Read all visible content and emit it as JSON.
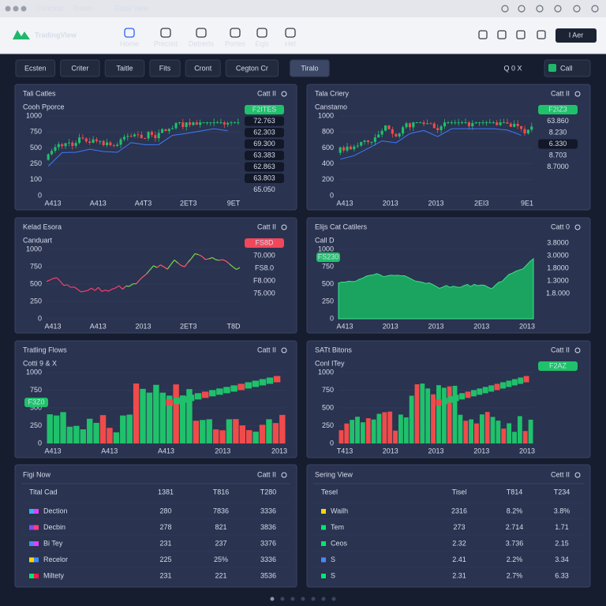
{
  "browser": {
    "tabs": [
      "Concicts",
      "Tralion",
      "Eopy View"
    ]
  },
  "nav": {
    "logo": "TradingView",
    "items": [
      "Home",
      "Precisd",
      "Detrerts",
      "Portes",
      "Eqis",
      "Het"
    ],
    "active": 0,
    "account": "I Aer"
  },
  "toolbar": {
    "buttons": [
      "Ecsten",
      "Criter",
      "Taitle",
      "Fits",
      "Cront",
      "Cegton Cr",
      "Tiralo"
    ],
    "active": 6,
    "search": "Q 0 X",
    "call": "Call"
  },
  "panels": [
    {
      "title": "Tali Catles",
      "action": "Catt II",
      "subtitle": "Cooh Pporce",
      "kind": "candles",
      "yticks": [
        "1000",
        "750",
        "500",
        "250",
        "100",
        "0"
      ],
      "xticks": [
        "A413",
        "A413",
        "A4T3",
        "2ET3",
        "9ET"
      ],
      "tags": [
        {
          "label": "F2ITES",
          "style": "green"
        },
        {
          "label": "72.763",
          "style": "dark"
        },
        {
          "label": "62.303",
          "style": "dark"
        },
        {
          "label": "69.300",
          "style": "dark"
        },
        {
          "label": "63.383",
          "style": "dark"
        },
        {
          "label": "62.863",
          "style": "dark"
        },
        {
          "label": "63.803",
          "style": "dark"
        },
        {
          "label": "65.050",
          "style": "red-text"
        }
      ]
    },
    {
      "title": "Tala Criery",
      "action": "Catt II",
      "subtitle": "Canstamo",
      "kind": "candles",
      "yticks": [
        "1000",
        "800",
        "600",
        "400",
        "200",
        "0"
      ],
      "xticks": [
        "A413",
        "2013",
        "2013",
        "2EI3",
        "9E1"
      ],
      "tags": [
        {
          "label": "F2IZ3",
          "style": "green"
        },
        {
          "label": "63.860",
          "style": "plain"
        },
        {
          "label": "8.230",
          "style": "plain"
        },
        {
          "label": "6.330",
          "style": "dark"
        },
        {
          "label": "8.703",
          "style": "plain"
        },
        {
          "label": "8.7000",
          "style": "plain"
        }
      ]
    },
    {
      "title": "Kelad Esora",
      "action": "Catt II",
      "subtitle": "Canduart",
      "kind": "line",
      "yticks": [
        "1000",
        "750",
        "500",
        "250",
        "0"
      ],
      "xticks": [
        "A413",
        "A413",
        "2013",
        "2ET3",
        "T8D"
      ],
      "tags": [
        {
          "label": "FS8D",
          "style": "red"
        },
        {
          "label": "70.000",
          "style": "plain"
        },
        {
          "label": "FS8.0",
          "style": "red-text"
        },
        {
          "label": "F8.000",
          "style": "green-text"
        },
        {
          "label": "75.000",
          "style": "red-text"
        }
      ]
    },
    {
      "title": "Elijs Cat Catilers",
      "action": "Catt 0",
      "subtitle": "Call D",
      "kind": "area",
      "yticks": [
        "1000",
        "750",
        "500",
        "250",
        "0"
      ],
      "xticks": [
        "A413",
        "2013",
        "2013",
        "2013",
        "2013"
      ],
      "tags": [
        {
          "label": "3.8000",
          "style": "plain"
        },
        {
          "label": "3.0000",
          "style": "plain"
        },
        {
          "label": "1.8000",
          "style": "plain"
        },
        {
          "label": "1.3000",
          "style": "plain"
        },
        {
          "label": "1.8.000",
          "style": "plain"
        }
      ],
      "badge": {
        "label": "FS230",
        "style": "green"
      }
    },
    {
      "title": "Tratling Flows",
      "action": "Catt II",
      "subtitle": "Cotti 9 & X",
      "kind": "bars",
      "yticks": [
        "1000",
        "750",
        "500",
        "250",
        "0"
      ],
      "xticks": [
        "A413",
        "A413",
        "A413",
        "2013",
        "2013"
      ],
      "tags": [],
      "badge": {
        "label": "F3Z0",
        "style": "green"
      }
    },
    {
      "title": "SATt Bitons",
      "action": "Catt II",
      "subtitle": "Conl ITey",
      "kind": "bars",
      "yticks": [
        "1000",
        "750",
        "500",
        "250",
        "0"
      ],
      "xticks": [
        "T413",
        "2013",
        "2013",
        "2013",
        "2013"
      ],
      "tags": [
        {
          "label": "F2AZ",
          "style": "green"
        }
      ]
    }
  ],
  "tables": [
    {
      "title": "Figi Now",
      "action": "Catt II",
      "header": [
        "Tital Cad",
        "1381",
        "T816",
        "T280"
      ],
      "rows": [
        [
          "Dection",
          "280",
          "7836",
          "3336"
        ],
        [
          "Decbin",
          "278",
          "821",
          "3836"
        ],
        [
          "Bi Tey",
          "231",
          "237",
          "3376"
        ],
        [
          "Recelor",
          "225",
          "25%",
          "3336"
        ],
        [
          "Miltety",
          "231",
          "221",
          "3536"
        ]
      ],
      "row_icons": [
        [
          "#29b6f6",
          "#e040fb"
        ],
        [
          "#7c4dff",
          "#ff4081"
        ],
        [
          "#448aff",
          "#e040fb"
        ],
        [
          "#ffd600",
          "#448aff"
        ],
        [
          "#00e676",
          "#ff1744"
        ]
      ]
    },
    {
      "title": "Sering View",
      "action": "Cett II",
      "header": [
        "Tesel",
        "Tisel",
        "T814",
        "T234"
      ],
      "rows": [
        [
          "Wailh",
          "2316",
          "8.2%",
          "3.8%"
        ],
        [
          "Tem",
          "273",
          "2.714",
          "1.71"
        ],
        [
          "Ceos",
          "2.32",
          "3.736",
          "2.15"
        ],
        [
          "S",
          "2.41",
          "2.2%",
          "3.34"
        ],
        [
          "S",
          "2.31",
          "2.7%",
          "6.33"
        ]
      ],
      "row_icons": [
        [
          "#ffd600"
        ],
        [
          "#00e676"
        ],
        [
          "#00e676"
        ],
        [
          "#448aff"
        ],
        [
          "#00e676"
        ]
      ],
      "highlight": [
        0,
        3
      ]
    }
  ]
}
